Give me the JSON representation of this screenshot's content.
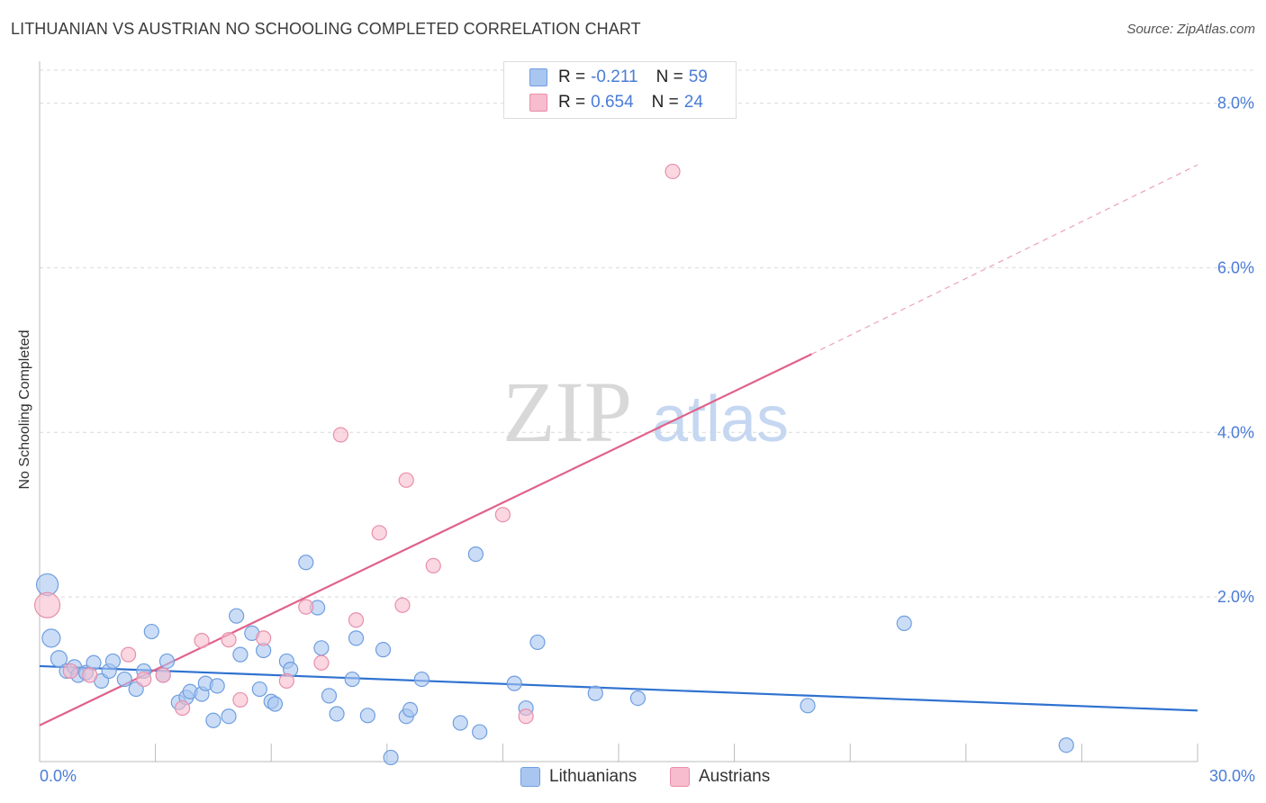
{
  "header": {
    "title": "LITHUANIAN VS AUSTRIAN NO SCHOOLING COMPLETED CORRELATION CHART",
    "source": "Source: ZipAtlas.com"
  },
  "legend_top": {
    "rows": [
      {
        "r_label": "R =",
        "r_value": "-0.211",
        "n_label": "N =",
        "n_value": "59"
      },
      {
        "r_label": "R =",
        "r_value": "0.654",
        "n_label": "N =",
        "n_value": "24"
      }
    ]
  },
  "legend_bottom": {
    "items": [
      "Lithuanians",
      "Austrians"
    ]
  },
  "colors": {
    "blue_fill": "#a9c6f0",
    "blue_stroke": "#6f9ee0",
    "blue_line": "#2f72d0",
    "pink_fill": "#f7bccd",
    "pink_stroke": "#e88fab",
    "pink_line": "#e0628a",
    "axis_text": "#4a7cd8",
    "grid": "#d9d9d9"
  },
  "watermark": {
    "zip": "ZIP",
    "atlas": "atlas"
  },
  "chart_data": {
    "type": "scatter",
    "title": "LITHUANIAN VS AUSTRIAN NO SCHOOLING COMPLETED CORRELATION CHART",
    "xlabel": "",
    "ylabel": "No Schooling Completed",
    "xlim": [
      0,
      30
    ],
    "ylim": [
      0,
      8.4
    ],
    "x_tick_labels": [
      {
        "value": 0,
        "label": "0.0%"
      },
      {
        "value": 30,
        "label": "30.0%"
      }
    ],
    "x_minor_ticks": [
      3,
      6,
      9,
      12,
      15,
      18,
      21,
      24,
      27,
      30
    ],
    "y_ticks": [
      {
        "value": 2,
        "label": "2.0%"
      },
      {
        "value": 4,
        "label": "4.0%"
      },
      {
        "value": 6,
        "label": "6.0%"
      },
      {
        "value": 8,
        "label": "8.0%"
      }
    ],
    "series": [
      {
        "name": "Lithuanians",
        "color": "blue",
        "points": [
          [
            0.2,
            2.15,
            22
          ],
          [
            0.3,
            1.5,
            18
          ],
          [
            0.5,
            1.25,
            16
          ],
          [
            0.7,
            1.1,
            14
          ],
          [
            0.9,
            1.15,
            14
          ],
          [
            1.0,
            1.05,
            14
          ],
          [
            1.2,
            1.08,
            14
          ],
          [
            1.4,
            1.2,
            14
          ],
          [
            1.6,
            0.98,
            14
          ],
          [
            1.8,
            1.1,
            14
          ],
          [
            1.9,
            1.22,
            14
          ],
          [
            2.2,
            1.0,
            14
          ],
          [
            2.5,
            0.88,
            14
          ],
          [
            2.7,
            1.1,
            14
          ],
          [
            2.9,
            1.58,
            14
          ],
          [
            3.2,
            1.05,
            14
          ],
          [
            3.3,
            1.22,
            14
          ],
          [
            3.6,
            0.72,
            14
          ],
          [
            3.8,
            0.78,
            14
          ],
          [
            3.9,
            0.85,
            14
          ],
          [
            4.2,
            0.82,
            14
          ],
          [
            4.3,
            0.95,
            14
          ],
          [
            4.5,
            0.5,
            14
          ],
          [
            4.6,
            0.92,
            14
          ],
          [
            4.9,
            0.55,
            14
          ],
          [
            5.1,
            1.77,
            14
          ],
          [
            5.2,
            1.3,
            14
          ],
          [
            5.5,
            1.56,
            14
          ],
          [
            5.7,
            0.88,
            14
          ],
          [
            5.8,
            1.35,
            14
          ],
          [
            6.0,
            0.73,
            14
          ],
          [
            6.1,
            0.7,
            14
          ],
          [
            6.4,
            1.22,
            14
          ],
          [
            6.5,
            1.12,
            14
          ],
          [
            6.9,
            2.42,
            14
          ],
          [
            7.2,
            1.87,
            14
          ],
          [
            7.3,
            1.38,
            14
          ],
          [
            7.5,
            0.8,
            14
          ],
          [
            7.7,
            0.58,
            14
          ],
          [
            8.1,
            1.0,
            14
          ],
          [
            8.2,
            1.5,
            14
          ],
          [
            8.5,
            0.56,
            14
          ],
          [
            8.9,
            1.36,
            14
          ],
          [
            9.1,
            0.05,
            14
          ],
          [
            9.5,
            0.55,
            14
          ],
          [
            9.6,
            0.63,
            14
          ],
          [
            9.9,
            1.0,
            14
          ],
          [
            10.9,
            0.47,
            14
          ],
          [
            11.3,
            2.52,
            14
          ],
          [
            11.4,
            0.36,
            14
          ],
          [
            12.3,
            0.95,
            14
          ],
          [
            12.6,
            0.65,
            14
          ],
          [
            12.9,
            1.45,
            14
          ],
          [
            14.4,
            0.83,
            14
          ],
          [
            15.5,
            0.77,
            14
          ],
          [
            19.9,
            0.68,
            14
          ],
          [
            22.4,
            1.68,
            14
          ],
          [
            26.6,
            0.2,
            14
          ]
        ],
        "trend": {
          "x": [
            0,
            30
          ],
          "y": [
            1.16,
            0.62
          ],
          "style": "solid"
        }
      },
      {
        "name": "Austrians",
        "color": "pink",
        "points": [
          [
            0.2,
            1.9,
            26
          ],
          [
            0.8,
            1.1,
            14
          ],
          [
            1.3,
            1.05,
            14
          ],
          [
            2.3,
            1.3,
            14
          ],
          [
            2.7,
            1.0,
            14
          ],
          [
            3.2,
            1.05,
            14
          ],
          [
            3.7,
            0.65,
            14
          ],
          [
            4.2,
            1.47,
            14
          ],
          [
            4.9,
            1.48,
            14
          ],
          [
            5.2,
            0.75,
            14
          ],
          [
            5.8,
            1.5,
            14
          ],
          [
            6.4,
            0.98,
            14
          ],
          [
            6.9,
            1.88,
            14
          ],
          [
            7.3,
            1.2,
            14
          ],
          [
            7.8,
            3.97,
            14
          ],
          [
            8.2,
            1.72,
            14
          ],
          [
            8.8,
            2.78,
            14
          ],
          [
            9.4,
            1.9,
            14
          ],
          [
            9.5,
            3.42,
            14
          ],
          [
            10.2,
            2.38,
            14
          ],
          [
            12.0,
            3.0,
            14
          ],
          [
            12.6,
            0.55,
            14
          ],
          [
            16.4,
            7.17,
            14
          ]
        ],
        "trend": {
          "x": [
            0,
            20
          ],
          "y": [
            0.44,
            4.95
          ],
          "style": "solid",
          "extension": {
            "x": [
              20,
              30
            ],
            "y": [
              4.95,
              7.25
            ],
            "style": "dashed"
          }
        }
      }
    ]
  }
}
